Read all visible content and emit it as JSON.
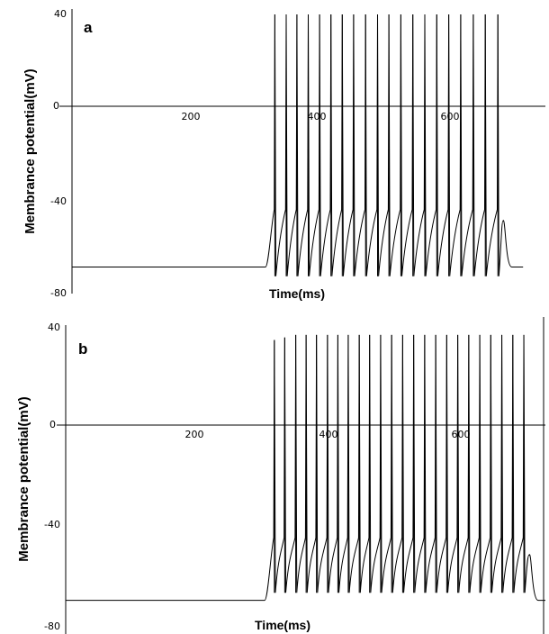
{
  "chart_data": [
    {
      "type": "line",
      "panel_label": "a",
      "xlabel": "Time(ms)",
      "ylabel": "Membrance potential(mV)",
      "xlim": [
        0,
        750
      ],
      "ylim": [
        -80,
        40
      ],
      "x_ticks": [
        "200",
        "400",
        "600"
      ],
      "y_ticks": [
        "40",
        "0",
        "-40",
        "-80"
      ],
      "resting_mV": -70,
      "stimulus_on_ms": 310,
      "after_last_spike_peak_mV": -50,
      "spikes": [
        {
          "t": 322,
          "peak": 40,
          "trough": -74
        },
        {
          "t": 340,
          "peak": 40,
          "trough": -74
        },
        {
          "t": 357,
          "peak": 40,
          "trough": -74
        },
        {
          "t": 375,
          "peak": 40,
          "trough": -74
        },
        {
          "t": 393,
          "peak": 40,
          "trough": -74
        },
        {
          "t": 411,
          "peak": 40,
          "trough": -74
        },
        {
          "t": 429,
          "peak": 40,
          "trough": -74
        },
        {
          "t": 447,
          "peak": 40,
          "trough": -74
        },
        {
          "t": 466,
          "peak": 40,
          "trough": -74
        },
        {
          "t": 485,
          "peak": 40,
          "trough": -74
        },
        {
          "t": 503,
          "peak": 40,
          "trough": -74
        },
        {
          "t": 522,
          "peak": 40,
          "trough": -74
        },
        {
          "t": 541,
          "peak": 40,
          "trough": -74
        },
        {
          "t": 560,
          "peak": 40,
          "trough": -74
        },
        {
          "t": 579,
          "peak": 40,
          "trough": -74
        },
        {
          "t": 598,
          "peak": 40,
          "trough": -74
        },
        {
          "t": 617,
          "peak": 40,
          "trough": -74
        },
        {
          "t": 637,
          "peak": 40,
          "trough": -74
        },
        {
          "t": 656,
          "peak": 40,
          "trough": -74
        },
        {
          "t": 676,
          "peak": 40,
          "trough": -74
        }
      ]
    },
    {
      "type": "line",
      "panel_label": "b",
      "xlabel": "Time(ms)",
      "ylabel": "Membrance potential(mV)",
      "xlim": [
        0,
        740
      ],
      "ylim": [
        -80,
        40
      ],
      "x_ticks": [
        "200",
        "400",
        "600"
      ],
      "y_ticks": [
        "40",
        "0",
        "-40",
        "-80"
      ],
      "resting_mV": -70,
      "stimulus_on_ms": 310,
      "after_last_spike_peak_mV": -52,
      "spikes": [
        {
          "t": 322,
          "peak": 34,
          "trough": -67
        },
        {
          "t": 338,
          "peak": 35,
          "trough": -67
        },
        {
          "t": 355,
          "peak": 36,
          "trough": -67
        },
        {
          "t": 371,
          "peak": 36,
          "trough": -67
        },
        {
          "t": 387,
          "peak": 36,
          "trough": -67
        },
        {
          "t": 404,
          "peak": 36,
          "trough": -67
        },
        {
          "t": 420,
          "peak": 36,
          "trough": -67
        },
        {
          "t": 436,
          "peak": 36,
          "trough": -67
        },
        {
          "t": 453,
          "peak": 36,
          "trough": -67
        },
        {
          "t": 469,
          "peak": 36,
          "trough": -67
        },
        {
          "t": 486,
          "peak": 36,
          "trough": -67
        },
        {
          "t": 503,
          "peak": 36,
          "trough": -67
        },
        {
          "t": 520,
          "peak": 36,
          "trough": -67
        },
        {
          "t": 537,
          "peak": 36,
          "trough": -67
        },
        {
          "t": 554,
          "peak": 36,
          "trough": -67
        },
        {
          "t": 571,
          "peak": 36,
          "trough": -67
        },
        {
          "t": 588,
          "peak": 36,
          "trough": -67
        },
        {
          "t": 605,
          "peak": 36,
          "trough": -67
        },
        {
          "t": 622,
          "peak": 36,
          "trough": -67
        },
        {
          "t": 639,
          "peak": 36,
          "trough": -67
        },
        {
          "t": 656,
          "peak": 36,
          "trough": -67
        },
        {
          "t": 673,
          "peak": 36,
          "trough": -67
        },
        {
          "t": 690,
          "peak": 36,
          "trough": -67
        },
        {
          "t": 707,
          "peak": 36,
          "trough": -67
        }
      ]
    }
  ]
}
